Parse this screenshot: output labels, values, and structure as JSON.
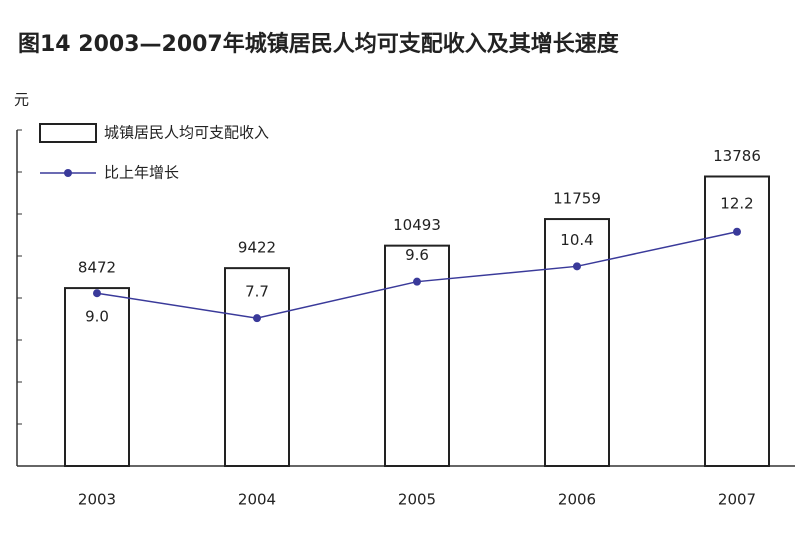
{
  "chart_data": {
    "type": "bar",
    "title": "图14  2003—2007年城镇居民人均可支配收入及其增长速度",
    "y_label": "元",
    "categories": [
      "2003",
      "2004",
      "2005",
      "2006",
      "2007"
    ],
    "ylim": [
      0,
      16000
    ],
    "yticks": [
      0,
      2000,
      4000,
      6000,
      8000,
      10000,
      12000,
      14000,
      16000
    ],
    "y2lim": [
      0,
      17.5
    ],
    "series": [
      {
        "name": "城镇居民人均可支配收入",
        "type": "bar",
        "color": "#ffffff",
        "values": [
          8472,
          9422,
          10493,
          11759,
          13786
        ]
      },
      {
        "name": "比上年增长",
        "type": "line",
        "axis": "y2",
        "color": "#3a3a9a",
        "values": [
          9.0,
          7.7,
          9.6,
          10.4,
          12.2
        ],
        "value_labels": [
          "9.0",
          "7.7",
          "9.6",
          "10.4",
          "12.2"
        ]
      }
    ]
  }
}
